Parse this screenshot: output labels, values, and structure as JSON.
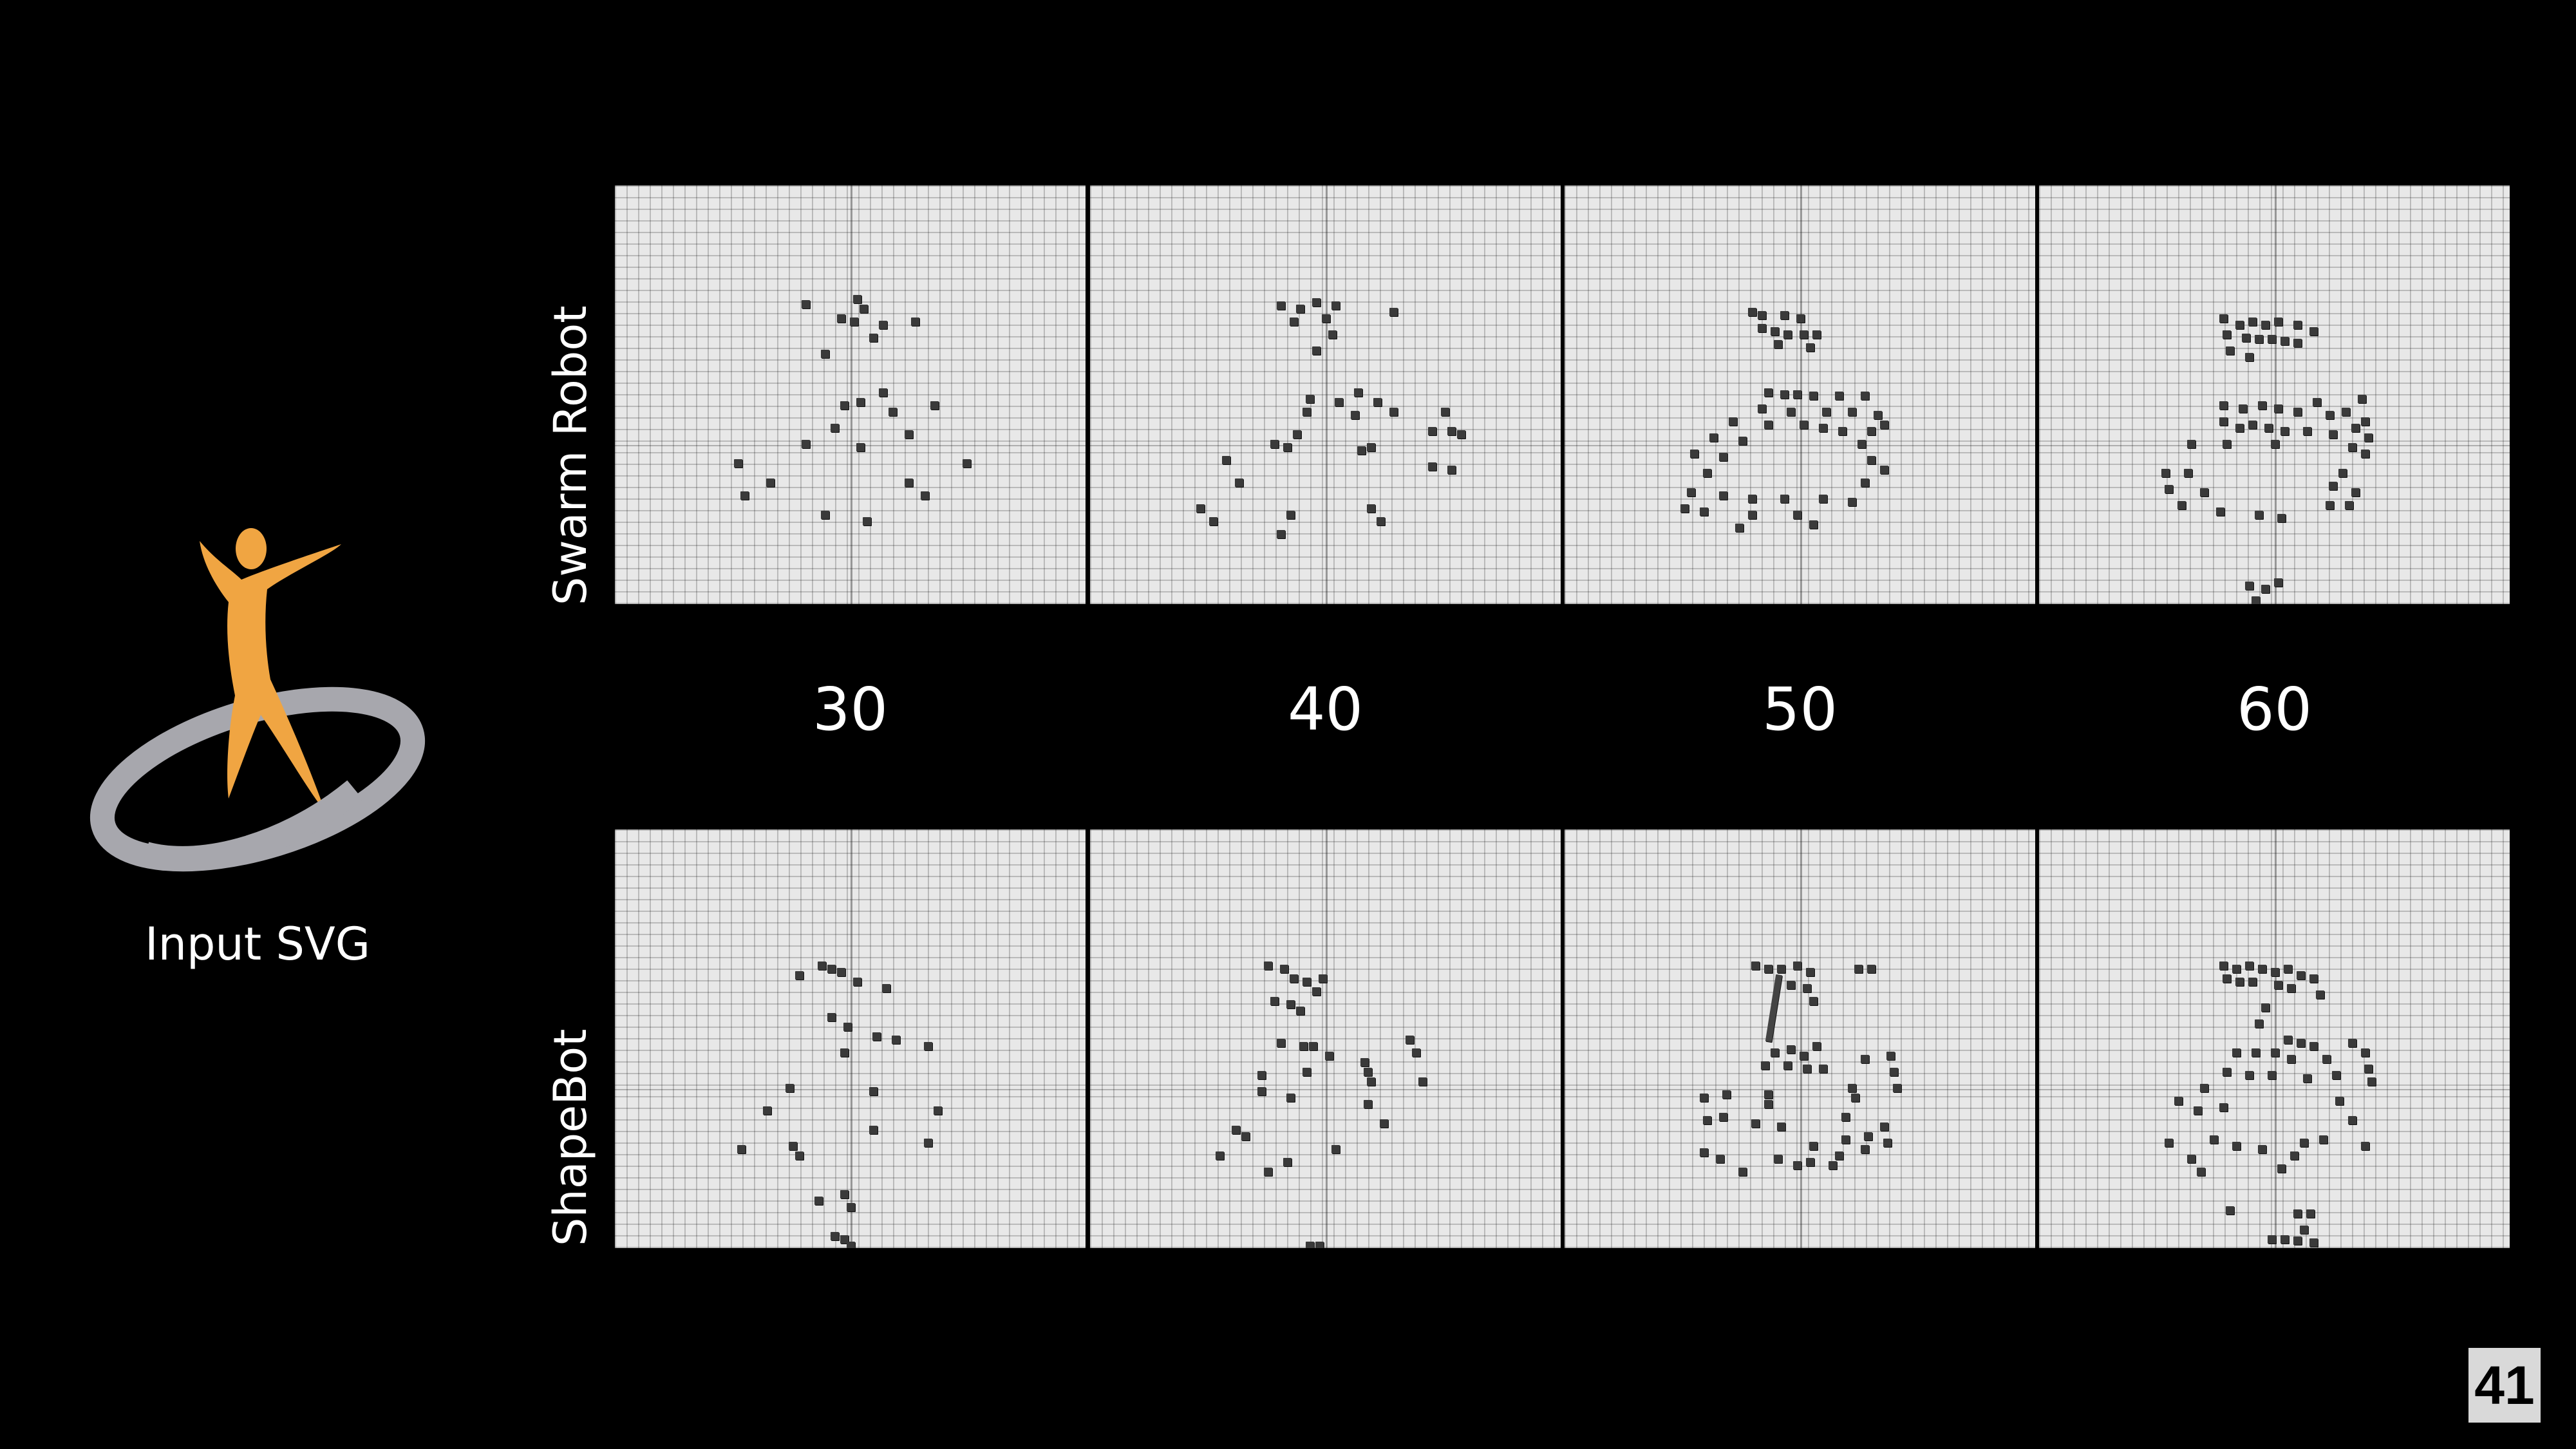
{
  "input_label": "Input SVG",
  "rows": [
    {
      "label": "Swarm Robot"
    },
    {
      "label": "ShapeBot"
    }
  ],
  "columns": [
    "30",
    "40",
    "50",
    "60"
  ],
  "page_number": "41",
  "colors": {
    "figure": "#F0A542",
    "ring": "#A7A7AD",
    "background": "#000000",
    "panel": "#E8E8E8",
    "robot": "#3A3A3A"
  }
}
